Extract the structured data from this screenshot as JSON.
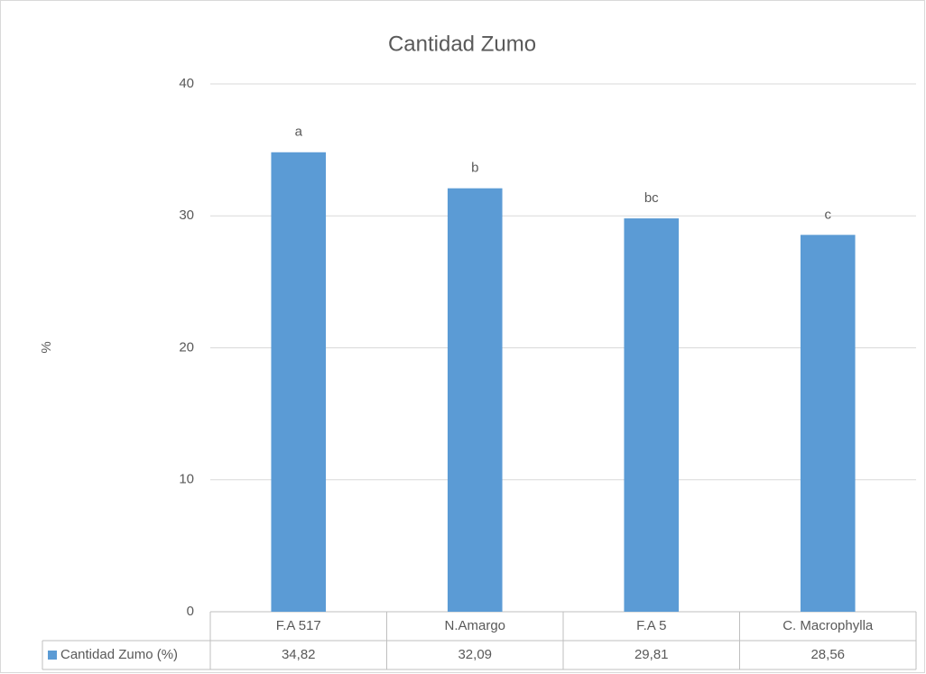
{
  "chart_data": {
    "type": "bar",
    "title": "Cantidad Zumo",
    "y_label": "%",
    "categories": [
      "F.A 517",
      "N.Amargo",
      "F.A 5",
      "C. Macrophylla"
    ],
    "series": [
      {
        "name": "Cantidad Zumo (%)",
        "color": "#5b9bd5",
        "values": [
          34.82,
          32.09,
          29.81,
          28.56
        ],
        "value_labels": [
          "34,82",
          "32,09",
          "29,81",
          "28,56"
        ]
      }
    ],
    "annotations": [
      "a",
      "b",
      "bc",
      "c"
    ],
    "ylim": [
      0,
      40
    ],
    "yticks": [
      0,
      10,
      20,
      30,
      40
    ],
    "grid": true
  }
}
